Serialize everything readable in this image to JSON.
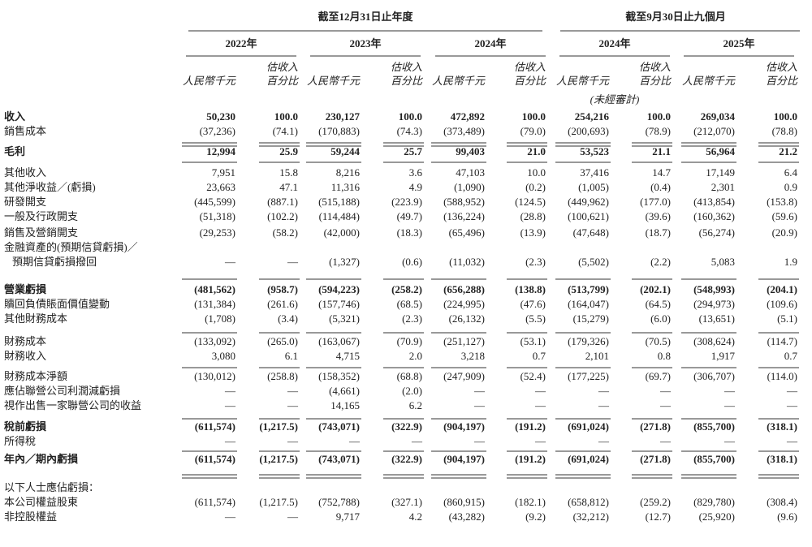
{
  "header": {
    "period_annual": "截至12月31日止年度",
    "period_interim": "截至9月30日止九個月",
    "years": [
      "2022年",
      "2023年",
      "2024年",
      "2024年",
      "2025年"
    ],
    "unit_rmb": "人民幣千元",
    "unit_pct": [
      "估收入",
      "百分比"
    ],
    "unaudited": "(未經審計)"
  },
  "table": {
    "rows": [
      {
        "label": "收入",
        "values": [
          "50,230",
          "100.0",
          "230,127",
          "100.0",
          "472,892",
          "100.0",
          "254,216",
          "100.0",
          "269,034",
          "100.0"
        ]
      },
      {
        "label": "銷售成本",
        "values": [
          "(37,236)",
          "(74.1)",
          "(170,883)",
          "(74.3)",
          "(373,489)",
          "(79.0)",
          "(200,693)",
          "(78.9)",
          "(212,070)",
          "(78.8)"
        ]
      },
      {
        "label": "毛利",
        "values": [
          "12,994",
          "25.9",
          "59,244",
          "25.7",
          "99,403",
          "21.0",
          "53,523",
          "21.1",
          "56,964",
          "21.2"
        ]
      },
      {
        "label": "其他收入",
        "values": [
          "7,951",
          "15.8",
          "8,216",
          "3.6",
          "47,103",
          "10.0",
          "37,416",
          "14.7",
          "17,149",
          "6.4"
        ]
      },
      {
        "label": "其他淨收益／(虧損)",
        "values": [
          "23,663",
          "47.1",
          "11,316",
          "4.9",
          "(1,090)",
          "(0.2)",
          "(1,005)",
          "(0.4)",
          "2,301",
          "0.9"
        ]
      },
      {
        "label": "研發開支",
        "values": [
          "(445,599)",
          "(887.1)",
          "(515,188)",
          "(223.9)",
          "(588,952)",
          "(124.5)",
          "(449,962)",
          "(177.0)",
          "(413,854)",
          "(153.8)"
        ]
      },
      {
        "label": "一般及行政開支",
        "values": [
          "(51,318)",
          "(102.2)",
          "(114,484)",
          "(49.7)",
          "(136,224)",
          "(28.8)",
          "(100,621)",
          "(39.6)",
          "(160,362)",
          "(59.6)"
        ]
      },
      {
        "label": "銷售及營銷開支",
        "values": [
          "(29,253)",
          "(58.2)",
          "(42,000)",
          "(18.3)",
          "(65,496)",
          "(13.9)",
          "(47,648)",
          "(18.7)",
          "(56,274)",
          "(20.9)"
        ]
      },
      {
        "label": [
          "金融資產的(預期信貸虧損)／",
          "預期信貸虧損撥回"
        ],
        "values": [
          "—",
          "—",
          "(1,327)",
          "(0.6)",
          "(11,032)",
          "(2.3)",
          "(5,502)",
          "(2.2)",
          "5,083",
          "1.9"
        ]
      },
      {
        "label": "營業虧損",
        "values": [
          "(481,562)",
          "(958.7)",
          "(594,223)",
          "(258.2)",
          "(656,288)",
          "(138.8)",
          "(513,799)",
          "(202.1)",
          "(548,993)",
          "(204.1)"
        ]
      },
      {
        "label": "贖回負債賬面價值變動",
        "values": [
          "(131,384)",
          "(261.6)",
          "(157,746)",
          "(68.5)",
          "(224,995)",
          "(47.6)",
          "(164,047)",
          "(64.5)",
          "(294,973)",
          "(109.6)"
        ]
      },
      {
        "label": "其他財務成本",
        "values": [
          "(1,708)",
          "(3.4)",
          "(5,321)",
          "(2.3)",
          "(26,132)",
          "(5.5)",
          "(15,279)",
          "(6.0)",
          "(13,651)",
          "(5.1)"
        ]
      },
      {
        "label": "財務成本",
        "values": [
          "(133,092)",
          "(265.0)",
          "(163,067)",
          "(70.9)",
          "(251,127)",
          "(53.1)",
          "(179,326)",
          "(70.5)",
          "(308,624)",
          "(114.7)"
        ]
      },
      {
        "label": "財務收入",
        "values": [
          "3,080",
          "6.1",
          "4,715",
          "2.0",
          "3,218",
          "0.7",
          "2,101",
          "0.8",
          "1,917",
          "0.7"
        ]
      },
      {
        "label": "財務成本淨額",
        "values": [
          "(130,012)",
          "(258.8)",
          "(158,352)",
          "(68.8)",
          "(247,909)",
          "(52.4)",
          "(177,225)",
          "(69.7)",
          "(306,707)",
          "(114.0)"
        ]
      },
      {
        "label": "應佔聯營公司利潤減虧損",
        "values": [
          "—",
          "—",
          "(4,661)",
          "(2.0)",
          "—",
          "—",
          "—",
          "—",
          "—",
          "—"
        ]
      },
      {
        "label": "視作出售一家聯營公司的收益",
        "values": [
          "—",
          "—",
          "14,165",
          "6.2",
          "—",
          "—",
          "—",
          "—",
          "—",
          "—"
        ]
      },
      {
        "label": "稅前虧損",
        "values": [
          "(611,574)",
          "(1,217.5)",
          "(743,071)",
          "(322.9)",
          "(904,197)",
          "(191.2)",
          "(691,024)",
          "(271.8)",
          "(855,700)",
          "(318.1)"
        ]
      },
      {
        "label": "所得稅",
        "values": [
          "—",
          "—",
          "—",
          "—",
          "—",
          "—",
          "—",
          "—",
          "—",
          "—"
        ]
      },
      {
        "label": "年內／期內虧損",
        "values": [
          "(611,574)",
          "(1,217.5)",
          "(743,071)",
          "(322.9)",
          "(904,197)",
          "(191.2)",
          "(691,024)",
          "(271.8)",
          "(855,700)",
          "(318.1)"
        ]
      },
      {
        "label": "以下人士應佔虧損：",
        "values": []
      },
      {
        "label": "本公司權益股東",
        "values": [
          "(611,574)",
          "(1,217.5)",
          "(752,788)",
          "(327.1)",
          "(860,915)",
          "(182.1)",
          "(658,812)",
          "(259.2)",
          "(829,780)",
          "(308.4)"
        ]
      },
      {
        "label": "非控股權益",
        "values": [
          "—",
          "—",
          "9,717",
          "4.2",
          "(43,282)",
          "(9.2)",
          "(32,212)",
          "(12.7)",
          "(25,920)",
          "(9.6)"
        ]
      }
    ]
  }
}
